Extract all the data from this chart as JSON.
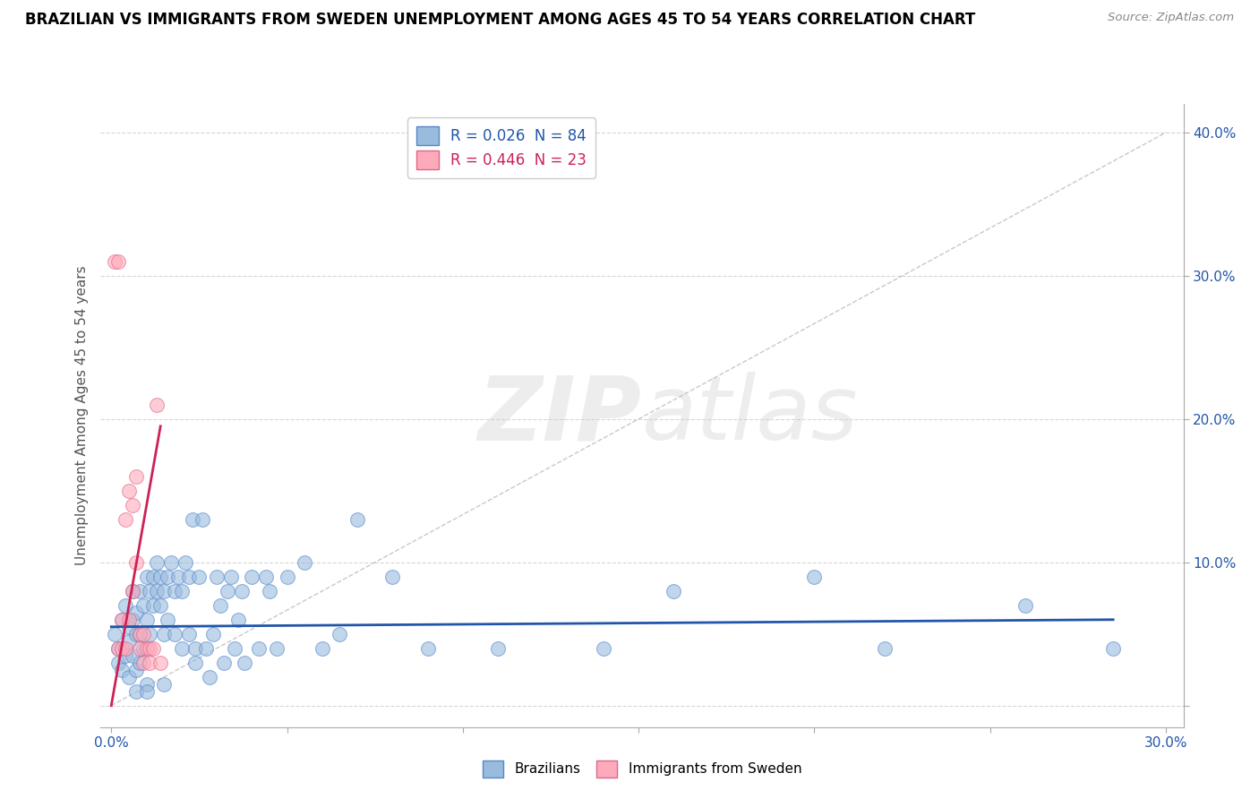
{
  "title": "BRAZILIAN VS IMMIGRANTS FROM SWEDEN UNEMPLOYMENT AMONG AGES 45 TO 54 YEARS CORRELATION CHART",
  "source": "Source: ZipAtlas.com",
  "ylabel": "Unemployment Among Ages 45 to 54 years",
  "watermark_zip": "ZIP",
  "watermark_atlas": "atlas",
  "xlim": [
    -0.003,
    0.305
  ],
  "ylim": [
    -0.015,
    0.42
  ],
  "xticks": [
    0.0,
    0.05,
    0.1,
    0.15,
    0.2,
    0.25,
    0.3
  ],
  "yticks": [
    0.0,
    0.1,
    0.2,
    0.3,
    0.4
  ],
  "legend_blue_label": "R = 0.026  N = 84",
  "legend_pink_label": "R = 0.446  N = 23",
  "legend_bottom_blue": "Brazilians",
  "legend_bottom_pink": "Immigrants from Sweden",
  "blue_color": "#99BBDD",
  "pink_color": "#FFAABB",
  "blue_edge_color": "#5588CC",
  "pink_edge_color": "#DD6688",
  "blue_line_color": "#2255AA",
  "pink_line_color": "#CC2255",
  "diag_color": "#BBBBBB",
  "title_fontsize": 12,
  "axis_label_fontsize": 11,
  "tick_fontsize": 11,
  "blue_points": [
    [
      0.001,
      0.05
    ],
    [
      0.002,
      0.04
    ],
    [
      0.002,
      0.03
    ],
    [
      0.003,
      0.06
    ],
    [
      0.003,
      0.025
    ],
    [
      0.004,
      0.07
    ],
    [
      0.004,
      0.035
    ],
    [
      0.005,
      0.045
    ],
    [
      0.005,
      0.055
    ],
    [
      0.005,
      0.02
    ],
    [
      0.006,
      0.035
    ],
    [
      0.006,
      0.08
    ],
    [
      0.006,
      0.06
    ],
    [
      0.007,
      0.065
    ],
    [
      0.007,
      0.025
    ],
    [
      0.007,
      0.05
    ],
    [
      0.008,
      0.05
    ],
    [
      0.008,
      0.08
    ],
    [
      0.008,
      0.03
    ],
    [
      0.009,
      0.07
    ],
    [
      0.009,
      0.04
    ],
    [
      0.01,
      0.09
    ],
    [
      0.01,
      0.06
    ],
    [
      0.01,
      0.015
    ],
    [
      0.011,
      0.08
    ],
    [
      0.011,
      0.05
    ],
    [
      0.012,
      0.09
    ],
    [
      0.012,
      0.07
    ],
    [
      0.013,
      0.08
    ],
    [
      0.013,
      0.1
    ],
    [
      0.014,
      0.07
    ],
    [
      0.014,
      0.09
    ],
    [
      0.015,
      0.08
    ],
    [
      0.015,
      0.05
    ],
    [
      0.015,
      0.015
    ],
    [
      0.016,
      0.09
    ],
    [
      0.016,
      0.06
    ],
    [
      0.017,
      0.1
    ],
    [
      0.018,
      0.08
    ],
    [
      0.018,
      0.05
    ],
    [
      0.019,
      0.09
    ],
    [
      0.02,
      0.08
    ],
    [
      0.02,
      0.04
    ],
    [
      0.021,
      0.1
    ],
    [
      0.022,
      0.05
    ],
    [
      0.022,
      0.09
    ],
    [
      0.023,
      0.13
    ],
    [
      0.024,
      0.04
    ],
    [
      0.024,
      0.03
    ],
    [
      0.025,
      0.09
    ],
    [
      0.026,
      0.13
    ],
    [
      0.027,
      0.04
    ],
    [
      0.028,
      0.02
    ],
    [
      0.029,
      0.05
    ],
    [
      0.03,
      0.09
    ],
    [
      0.031,
      0.07
    ],
    [
      0.032,
      0.03
    ],
    [
      0.033,
      0.08
    ],
    [
      0.034,
      0.09
    ],
    [
      0.035,
      0.04
    ],
    [
      0.036,
      0.06
    ],
    [
      0.037,
      0.08
    ],
    [
      0.038,
      0.03
    ],
    [
      0.04,
      0.09
    ],
    [
      0.042,
      0.04
    ],
    [
      0.044,
      0.09
    ],
    [
      0.045,
      0.08
    ],
    [
      0.047,
      0.04
    ],
    [
      0.05,
      0.09
    ],
    [
      0.055,
      0.1
    ],
    [
      0.06,
      0.04
    ],
    [
      0.065,
      0.05
    ],
    [
      0.07,
      0.13
    ],
    [
      0.08,
      0.09
    ],
    [
      0.09,
      0.04
    ],
    [
      0.11,
      0.04
    ],
    [
      0.14,
      0.04
    ],
    [
      0.16,
      0.08
    ],
    [
      0.2,
      0.09
    ],
    [
      0.22,
      0.04
    ],
    [
      0.26,
      0.07
    ],
    [
      0.285,
      0.04
    ],
    [
      0.007,
      0.01
    ],
    [
      0.01,
      0.01
    ]
  ],
  "pink_points": [
    [
      0.001,
      0.31
    ],
    [
      0.002,
      0.31
    ],
    [
      0.002,
      0.04
    ],
    [
      0.003,
      0.04
    ],
    [
      0.003,
      0.06
    ],
    [
      0.004,
      0.04
    ],
    [
      0.004,
      0.13
    ],
    [
      0.005,
      0.15
    ],
    [
      0.005,
      0.06
    ],
    [
      0.006,
      0.14
    ],
    [
      0.006,
      0.08
    ],
    [
      0.007,
      0.16
    ],
    [
      0.007,
      0.1
    ],
    [
      0.008,
      0.05
    ],
    [
      0.008,
      0.04
    ],
    [
      0.009,
      0.05
    ],
    [
      0.009,
      0.03
    ],
    [
      0.01,
      0.04
    ],
    [
      0.011,
      0.04
    ],
    [
      0.011,
      0.03
    ],
    [
      0.012,
      0.04
    ],
    [
      0.013,
      0.21
    ],
    [
      0.014,
      0.03
    ]
  ],
  "blue_trend_x": [
    0.0,
    0.285
  ],
  "blue_trend_y": [
    0.055,
    0.06
  ],
  "pink_trend_x": [
    0.0,
    0.014
  ],
  "pink_trend_y": [
    0.0,
    0.195
  ]
}
